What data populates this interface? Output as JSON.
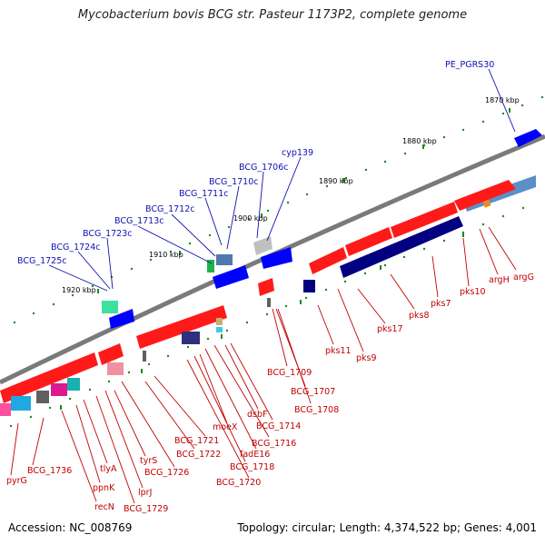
{
  "title": "Mycobacterium bovis BCG str. Pasteur 1173P2, complete genome",
  "accession": "Accession: NC_008769",
  "topology": "Topology: circular; Length: 4,374,522 bp; Genes: 4,001",
  "kbp_ticks": [
    {
      "label": "1870 kbp"
    },
    {
      "label": "1880 kbp"
    },
    {
      "label": "1890 kbp"
    },
    {
      "label": "1900 kbp"
    },
    {
      "label": "1910 kbp"
    },
    {
      "label": "1920 kbp"
    }
  ],
  "blue_genes": [
    {
      "label": "PE_PGRS30"
    },
    {
      "label": "cyp139"
    },
    {
      "label": "BCG_1706c"
    },
    {
      "label": "BCG_1710c"
    },
    {
      "label": "BCG_1711c"
    },
    {
      "label": "BCG_1712c"
    },
    {
      "label": "BCG_1713c"
    },
    {
      "label": "BCG_1723c"
    },
    {
      "label": "BCG_1724c"
    },
    {
      "label": "BCG_1725c"
    }
  ],
  "red_genes": [
    {
      "label": "argG"
    },
    {
      "label": "argH"
    },
    {
      "label": "pks10"
    },
    {
      "label": "pks7"
    },
    {
      "label": "pks8"
    },
    {
      "label": "pks17"
    },
    {
      "label": "pks9"
    },
    {
      "label": "pks11"
    },
    {
      "label": "BCG_1708"
    },
    {
      "label": "BCG_1707"
    },
    {
      "label": "BCG_1709"
    },
    {
      "label": "BCG_1714"
    },
    {
      "label": "dsbF"
    },
    {
      "label": "BCG_1716"
    },
    {
      "label": "fadE16"
    },
    {
      "label": "moeX"
    },
    {
      "label": "BCG_1718"
    },
    {
      "label": "BCG_1720"
    },
    {
      "label": "BCG_1721"
    },
    {
      "label": "BCG_1722"
    },
    {
      "label": "BCG_1726"
    },
    {
      "label": "tyrS"
    },
    {
      "label": "lprJ"
    },
    {
      "label": "BCG_1729"
    },
    {
      "label": "tlyA"
    },
    {
      "label": "ppnK"
    },
    {
      "label": "recN"
    },
    {
      "label": "BCG_1736"
    },
    {
      "label": "pyrG"
    }
  ],
  "colors": {
    "backbone": "#7a7a7a",
    "forward_gene": "#ff0000",
    "reverse_gene": "#0000ff",
    "pks_band": "#000080",
    "dots": "#1a8a1a",
    "label_blue": "#1010b0",
    "label_red": "#c00000"
  }
}
